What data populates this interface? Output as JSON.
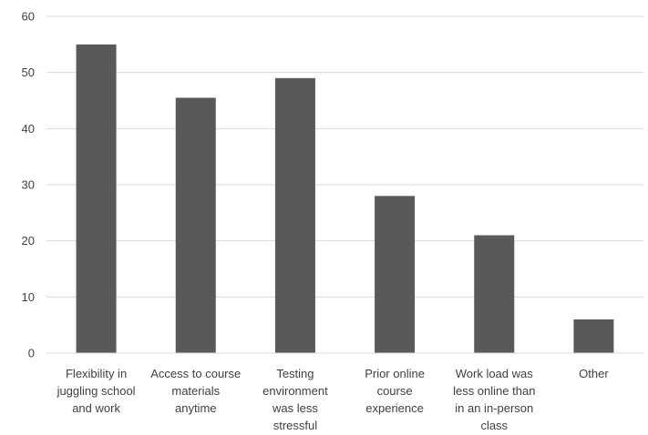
{
  "chart_data": {
    "type": "bar",
    "categories": [
      [
        "Flexibility in",
        "juggling school",
        "and work"
      ],
      [
        "Access to course",
        "materials",
        "anytime"
      ],
      [
        "Testing",
        "environment",
        "was less",
        "stressful"
      ],
      [
        "Prior online",
        "course",
        "experience"
      ],
      [
        "Work load was",
        "less online than",
        "in an in-person",
        "class"
      ],
      [
        "Other"
      ]
    ],
    "values": [
      55,
      45.5,
      49,
      28,
      21,
      6
    ],
    "ylim": [
      0,
      60
    ],
    "yticks": [
      0,
      10,
      20,
      30,
      40,
      50,
      60
    ],
    "grid": true,
    "legend": "none",
    "bar_color": "#595959",
    "grid_color": "#d9d9d9"
  }
}
